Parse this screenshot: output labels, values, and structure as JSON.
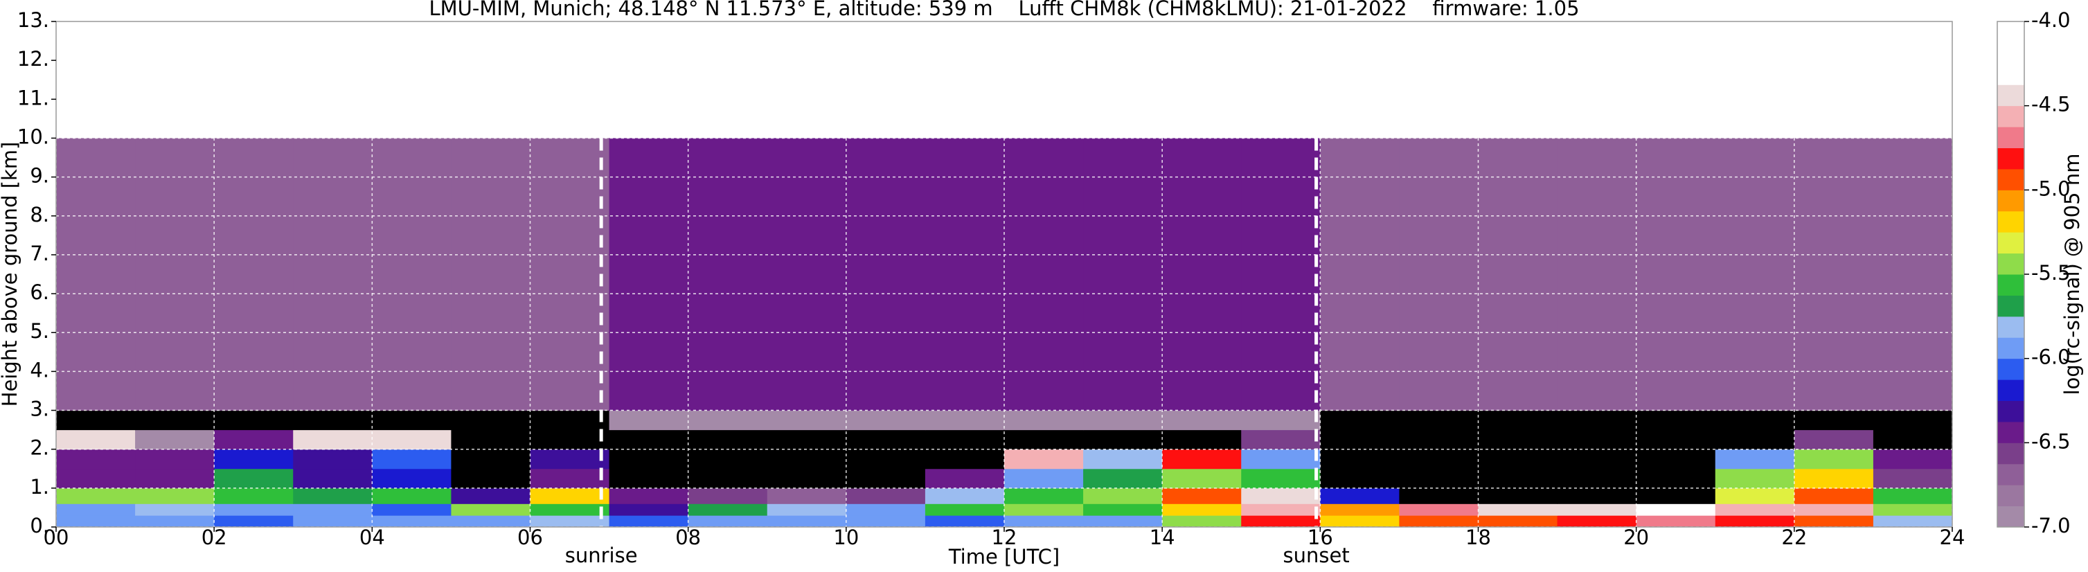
{
  "chart_data": {
    "type": "heatmap",
    "title": "LMU-MIM, Munich; 48.148° N 11.573° E, altitude: 539 m    Lufft CHM8k (CHM8kLMU): 21-01-2022    firmware: 1.05",
    "x_label": "Time [UTC]",
    "y_label": "Height above ground [km]",
    "colorbar_label": "log(rc-signal) @ 905 nm",
    "xlim": [
      0,
      24
    ],
    "xticks": [
      {
        "value": 0,
        "label": "00"
      },
      {
        "value": 2,
        "label": "02"
      },
      {
        "value": 4,
        "label": "04"
      },
      {
        "value": 6,
        "label": "06"
      },
      {
        "value": 8,
        "label": "08"
      },
      {
        "value": 10,
        "label": "10"
      },
      {
        "value": 12,
        "label": "12"
      },
      {
        "value": 14,
        "label": "14"
      },
      {
        "value": 16,
        "label": "16"
      },
      {
        "value": 18,
        "label": "18"
      },
      {
        "value": 20,
        "label": "20"
      },
      {
        "value": 22,
        "label": "22"
      },
      {
        "value": 24,
        "label": "24"
      }
    ],
    "ylim": [
      0,
      13
    ],
    "yticks": [
      {
        "value": 0,
        "label": "0."
      },
      {
        "value": 1,
        "label": "1."
      },
      {
        "value": 2,
        "label": "2."
      },
      {
        "value": 3,
        "label": "3."
      },
      {
        "value": 4,
        "label": "4."
      },
      {
        "value": 5,
        "label": "5."
      },
      {
        "value": 6,
        "label": "6."
      },
      {
        "value": 7,
        "label": "7."
      },
      {
        "value": 8,
        "label": "8."
      },
      {
        "value": 9,
        "label": "9."
      },
      {
        "value": 10,
        "label": "10."
      },
      {
        "value": 11,
        "label": "11."
      },
      {
        "value": 12,
        "label": "12."
      },
      {
        "value": 13,
        "label": "13."
      }
    ],
    "clim": [
      -7,
      -4
    ],
    "cticks": [
      {
        "value": -7,
        "label": "-7.0"
      },
      {
        "value": -6.5,
        "label": "-6.5"
      },
      {
        "value": -6,
        "label": "-6.0"
      },
      {
        "value": -5.5,
        "label": "-5.5"
      },
      {
        "value": -5,
        "label": "-5.0"
      },
      {
        "value": -4.5,
        "label": "-4.5"
      },
      {
        "value": -4,
        "label": "-4.0"
      }
    ],
    "colorscale": [
      "#a48aa8",
      "#9b77a0",
      "#8f5f98",
      "#7a3f8a",
      "#6a1b8a",
      "#3d0f9a",
      "#1a1ad0",
      "#2c5cf0",
      "#6f9cf5",
      "#9bbcf0",
      "#1fa04a",
      "#2fbf3a",
      "#8fdc4a",
      "#e0f040",
      "#ffd400",
      "#ff9a00",
      "#ff5000",
      "#ff1010",
      "#f07a8a",
      "#f4b0b4",
      "#ecdada",
      "#ffffff",
      "#ffffff",
      "#ffffff"
    ],
    "under_color": "#000000",
    "grid": true,
    "x_edges": [
      0,
      1,
      2,
      3,
      4,
      5,
      6,
      7,
      8,
      9,
      10,
      11,
      12,
      13,
      14,
      15,
      16,
      17,
      18,
      19,
      20,
      21,
      22,
      23,
      24
    ],
    "y_edges": [
      0,
      0.3,
      0.6,
      1.0,
      1.5,
      2.0,
      2.5,
      3.0,
      10.0
    ],
    "z": [
      [
        -6.0,
        -6.0,
        -6.1,
        -6.0,
        -6.0,
        -5.9,
        -5.8,
        -6.1,
        -5.9,
        -5.9,
        -6.0,
        -6.1,
        -6.0,
        -5.9,
        -5.5,
        -4.8,
        -5.2,
        -5.0,
        -4.9,
        -4.8,
        -4.7,
        -4.8,
        -4.9,
        -5.8
      ],
      [
        -5.9,
        -5.8,
        -5.9,
        -6.0,
        -6.1,
        -5.4,
        -5.6,
        -6.3,
        -5.7,
        -5.8,
        -5.9,
        -5.6,
        -5.5,
        -5.6,
        -5.2,
        -4.6,
        -5.1,
        -4.7,
        -4.5,
        -4.4,
        -4.3,
        -4.6,
        -4.6,
        -5.4
      ],
      [
        -5.5,
        -5.4,
        -5.6,
        -5.7,
        -5.6,
        -6.3,
        -5.2,
        -6.5,
        -6.6,
        -6.7,
        -6.6,
        -5.8,
        -5.6,
        -5.4,
        -5.0,
        -4.4,
        -6.2,
        -7.5,
        -7.5,
        -7.5,
        -7.5,
        -5.3,
        -5.0,
        -5.6
      ],
      [
        -6.4,
        -6.5,
        -5.7,
        -6.3,
        -6.2,
        -7.5,
        -6.5,
        -7.5,
        -7.5,
        -7.5,
        -7.5,
        -6.4,
        -5.9,
        -5.7,
        -5.4,
        -5.6,
        -7.5,
        -7.5,
        -7.5,
        -7.5,
        -7.5,
        -5.5,
        -5.2,
        -6.6
      ],
      [
        -6.5,
        -6.4,
        -6.2,
        -6.3,
        -6.1,
        -7.5,
        -6.3,
        -7.5,
        -7.5,
        -7.5,
        -7.5,
        -7.5,
        -4.6,
        -5.8,
        -4.8,
        -6.0,
        -7.5,
        -7.5,
        -7.5,
        -7.5,
        -7.5,
        -6.0,
        -5.4,
        -6.5
      ],
      [
        -4.4,
        -7.0,
        -6.4,
        -4.5,
        -4.4,
        -7.5,
        -7.5,
        -7.5,
        -7.5,
        -7.5,
        -7.5,
        -7.5,
        -7.5,
        -7.5,
        -7.5,
        -6.6,
        -7.5,
        -7.5,
        -7.5,
        -7.5,
        -7.5,
        -7.5,
        -6.6,
        -7.5
      ],
      [
        -7.5,
        -7.5,
        -7.5,
        -7.5,
        -7.5,
        -7.5,
        -7.5,
        -6.9,
        -6.9,
        -6.9,
        -6.9,
        -6.9,
        -6.9,
        -6.9,
        -6.9,
        -6.9,
        -7.5,
        -7.5,
        -7.5,
        -7.5,
        -7.5,
        -7.5,
        -7.5,
        -7.5
      ],
      [
        -6.7,
        -6.7,
        -6.7,
        -6.7,
        -6.7,
        -6.7,
        -6.7,
        -6.4,
        -6.4,
        -6.4,
        -6.4,
        -6.4,
        -6.4,
        -6.4,
        -6.4,
        -6.4,
        -6.7,
        -6.7,
        -6.7,
        -6.7,
        -6.7,
        -6.7,
        -6.7,
        -6.7
      ]
    ],
    "annotations": [
      {
        "text": "sunrise",
        "x": 6.9
      },
      {
        "text": "sunset",
        "x": 15.95
      }
    ]
  }
}
